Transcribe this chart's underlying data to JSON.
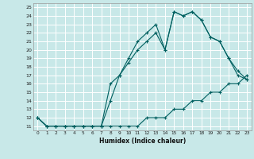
{
  "title": "",
  "xlabel": "Humidex (Indice chaleur)",
  "background_color": "#c8e8e8",
  "grid_color": "#ffffff",
  "line_color": "#006060",
  "xlim": [
    -0.5,
    23.5
  ],
  "ylim": [
    10.5,
    25.5
  ],
  "xticks": [
    0,
    1,
    2,
    3,
    4,
    5,
    6,
    7,
    8,
    9,
    10,
    11,
    12,
    13,
    14,
    15,
    16,
    17,
    18,
    19,
    20,
    21,
    22,
    23
  ],
  "yticks": [
    11,
    12,
    13,
    14,
    15,
    16,
    17,
    18,
    19,
    20,
    21,
    22,
    23,
    24,
    25
  ],
  "line1_x": [
    0,
    1,
    2,
    3,
    4,
    5,
    6,
    7,
    8,
    9,
    10,
    11,
    12,
    13,
    14,
    15,
    16,
    17,
    18,
    19,
    20,
    21,
    22,
    23
  ],
  "line1_y": [
    12,
    11,
    11,
    11,
    11,
    11,
    11,
    11,
    11,
    11,
    11,
    11,
    12,
    12,
    12,
    13,
    13,
    14,
    14,
    15,
    15,
    16,
    16,
    17
  ],
  "line2_x": [
    0,
    1,
    2,
    3,
    4,
    5,
    6,
    7,
    8,
    9,
    10,
    11,
    12,
    13,
    14,
    15,
    16,
    17,
    18,
    19,
    20,
    21,
    22,
    23
  ],
  "line2_y": [
    12,
    11,
    11,
    11,
    11,
    11,
    11,
    11,
    14,
    17,
    18.5,
    20,
    21,
    22,
    20,
    24.5,
    24,
    24.5,
    23.5,
    21.5,
    21,
    19,
    17,
    16.5
  ],
  "line3_x": [
    0,
    1,
    2,
    3,
    4,
    5,
    6,
    7,
    8,
    9,
    10,
    11,
    12,
    13,
    14,
    15,
    16,
    17,
    18,
    19,
    20,
    21,
    22,
    23
  ],
  "line3_y": [
    12,
    11,
    11,
    11,
    11,
    11,
    11,
    11,
    16,
    17,
    19,
    21,
    22,
    23,
    20,
    24.5,
    24,
    24.5,
    23.5,
    21.5,
    21,
    19,
    17.5,
    16.5
  ]
}
